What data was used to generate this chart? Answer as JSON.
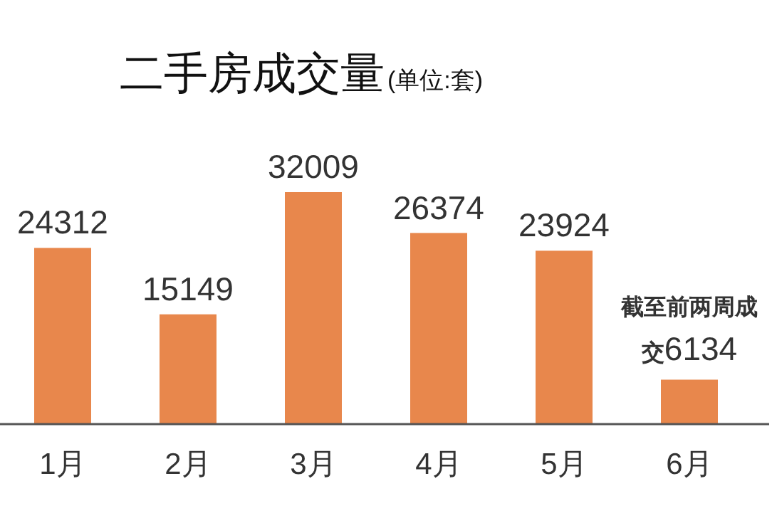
{
  "chart_data": {
    "type": "bar",
    "title": "二手房成交量",
    "subtitle": "(单位:套)",
    "categories": [
      "1月",
      "2月",
      "3月",
      "4月",
      "5月",
      "6月"
    ],
    "values": [
      24312,
      15149,
      32009,
      26374,
      23924,
      6134
    ],
    "value_labels": [
      "24312",
      "15149",
      "32009",
      "26374",
      "23924",
      "**截至前两周成交**6134"
    ],
    "color": "#e8874c"
  }
}
